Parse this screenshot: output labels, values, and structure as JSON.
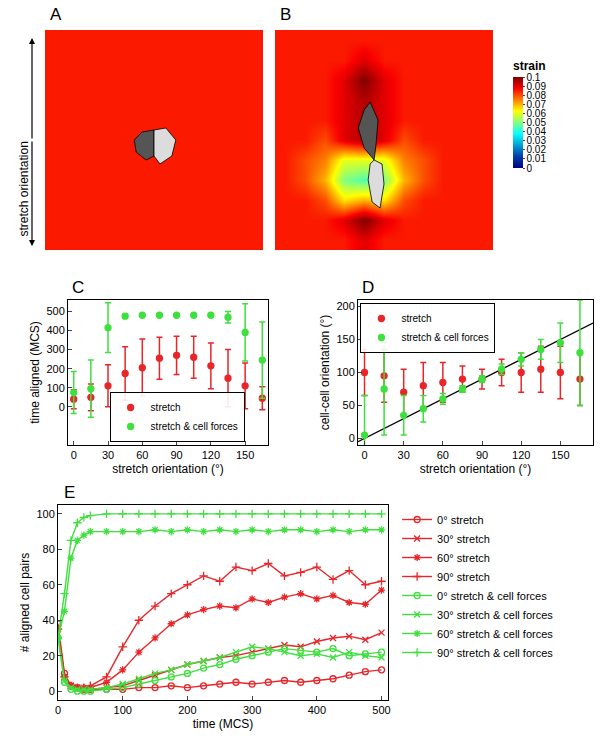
{
  "chart_data": [
    {
      "type": "heatmap",
      "label": "A",
      "side_label": "stretch orientation",
      "x": [
        0,
        1,
        2,
        3,
        4,
        5,
        6,
        7,
        8,
        9,
        10
      ],
      "y": [
        0,
        1,
        2,
        3,
        4,
        5,
        6,
        7,
        8,
        9,
        10
      ],
      "z": [
        [
          0.085,
          0.085,
          0.085,
          0.085,
          0.085,
          0.085,
          0.085,
          0.085,
          0.085,
          0.085,
          0.085
        ],
        [
          0.085,
          0.085,
          0.085,
          0.085,
          0.085,
          0.085,
          0.085,
          0.085,
          0.085,
          0.085,
          0.085
        ],
        [
          0.085,
          0.085,
          0.085,
          0.085,
          0.085,
          0.085,
          0.085,
          0.085,
          0.085,
          0.085,
          0.085
        ],
        [
          0.085,
          0.085,
          0.085,
          0.085,
          0.085,
          0.085,
          0.085,
          0.085,
          0.085,
          0.085,
          0.085
        ],
        [
          0.085,
          0.085,
          0.085,
          0.085,
          0.085,
          0.085,
          0.085,
          0.085,
          0.085,
          0.085,
          0.085
        ],
        [
          0.085,
          0.085,
          0.085,
          0.085,
          0.085,
          0.085,
          0.085,
          0.085,
          0.085,
          0.085,
          0.085
        ],
        [
          0.085,
          0.085,
          0.085,
          0.085,
          0.085,
          0.085,
          0.085,
          0.085,
          0.085,
          0.085,
          0.085
        ],
        [
          0.085,
          0.085,
          0.085,
          0.085,
          0.085,
          0.085,
          0.085,
          0.085,
          0.085,
          0.085,
          0.085
        ],
        [
          0.085,
          0.085,
          0.085,
          0.085,
          0.085,
          0.085,
          0.085,
          0.085,
          0.085,
          0.085,
          0.085
        ],
        [
          0.085,
          0.085,
          0.085,
          0.085,
          0.085,
          0.085,
          0.085,
          0.085,
          0.085,
          0.085,
          0.085
        ],
        [
          0.085,
          0.085,
          0.085,
          0.085,
          0.085,
          0.085,
          0.085,
          0.085,
          0.085,
          0.085,
          0.085
        ]
      ],
      "cells": [
        {
          "color": "#555555",
          "x": [
            5,
            4.4,
            4.0,
            4.1,
            4.6,
            5,
            5
          ],
          "y": [
            5.5,
            5.4,
            5.0,
            4.4,
            4.0,
            4.2,
            5.5
          ]
        },
        {
          "color": "#dcdcdc",
          "x": [
            5,
            5.6,
            6.1,
            5.9,
            5.3,
            5,
            5
          ],
          "y": [
            5.5,
            5.6,
            5.0,
            4.2,
            3.8,
            4.2,
            5.5
          ]
        }
      ],
      "xlim": [
        -0.5,
        10.5
      ],
      "ylim": [
        -0.5,
        10.5
      ],
      "tick_labels": false
    },
    {
      "type": "heatmap",
      "label": "B",
      "x": [
        0,
        1,
        2,
        3,
        4,
        5,
        6,
        7,
        8,
        9,
        10
      ],
      "y": [
        0,
        1,
        2,
        3,
        4,
        5,
        6,
        7,
        8,
        9,
        10
      ],
      "z": [
        [
          0.085,
          0.085,
          0.085,
          0.085,
          0.09,
          0.085,
          0.085,
          0.085,
          0.085,
          0.085,
          0.085
        ],
        [
          0.085,
          0.085,
          0.085,
          0.09,
          0.1,
          0.09,
          0.085,
          0.085,
          0.085,
          0.085,
          0.085
        ],
        [
          0.085,
          0.085,
          0.08,
          0.065,
          0.07,
          0.065,
          0.08,
          0.085,
          0.085,
          0.085,
          0.085
        ],
        [
          0.085,
          0.08,
          0.07,
          0.05,
          0.045,
          0.05,
          0.07,
          0.08,
          0.085,
          0.085,
          0.085
        ],
        [
          0.085,
          0.08,
          0.075,
          0.06,
          0.06,
          0.06,
          0.075,
          0.08,
          0.085,
          0.085,
          0.085
        ],
        [
          0.085,
          0.085,
          0.08,
          0.09,
          0.095,
          0.09,
          0.08,
          0.085,
          0.085,
          0.085,
          0.085
        ],
        [
          0.085,
          0.085,
          0.085,
          0.09,
          0.095,
          0.09,
          0.085,
          0.085,
          0.085,
          0.085,
          0.085
        ],
        [
          0.085,
          0.085,
          0.085,
          0.09,
          0.095,
          0.09,
          0.085,
          0.085,
          0.085,
          0.085,
          0.085
        ],
        [
          0.085,
          0.085,
          0.085,
          0.09,
          0.1,
          0.09,
          0.085,
          0.085,
          0.085,
          0.085,
          0.085
        ],
        [
          0.085,
          0.085,
          0.085,
          0.085,
          0.09,
          0.085,
          0.085,
          0.085,
          0.085,
          0.085,
          0.085
        ],
        [
          0.085,
          0.085,
          0.085,
          0.085,
          0.085,
          0.085,
          0.085,
          0.085,
          0.085,
          0.085,
          0.085
        ]
      ],
      "cells": [
        {
          "color": "#555555",
          "x": [
            4.3,
            4.0,
            3.7,
            4.0,
            4.5,
            4.6,
            4.7,
            4.3
          ],
          "y": [
            6.9,
            6.5,
            5.6,
            4.6,
            4.0,
            4.8,
            6.0,
            6.9
          ]
        },
        {
          "color": "#dcdcdc",
          "x": [
            4.5,
            4.9,
            5.0,
            4.8,
            4.4,
            4.2,
            4.3,
            4.5
          ],
          "y": [
            4.0,
            3.8,
            2.8,
            1.6,
            1.9,
            3.0,
            3.8,
            4.0
          ]
        }
      ],
      "xlim": [
        -0.5,
        10.5
      ],
      "ylim": [
        -0.5,
        10.5
      ],
      "tick_labels": false,
      "colorbar": {
        "title": "strain",
        "range": [
          0,
          0.1
        ],
        "ticks": [
          0,
          0.01,
          0.02,
          0.03,
          0.04,
          0.05,
          0.06,
          0.07,
          0.08,
          0.09,
          0.1
        ]
      }
    },
    {
      "type": "scatter",
      "label": "C",
      "xlabel": "stretch orientation (°)",
      "ylabel": "time aligned (MCS)",
      "x": [
        0,
        15,
        30,
        45,
        60,
        75,
        90,
        105,
        120,
        135,
        150,
        165
      ],
      "series": [
        {
          "name": "stretch",
          "color": "#e8262a",
          "marker": "dot",
          "values": [
            40,
            50,
            110,
            175,
            205,
            255,
            270,
            260,
            215,
            150,
            110,
            45
          ],
          "errors": [
            50,
            70,
            110,
            140,
            150,
            110,
            100,
            110,
            120,
            150,
            120,
            60
          ]
        },
        {
          "name": "stretch & cell forces",
          "color": "#3ee03e",
          "marker": "dot",
          "values": [
            75,
            95,
            415,
            475,
            480,
            480,
            480,
            480,
            480,
            470,
            390,
            245
          ],
          "errors": [
            110,
            150,
            130,
            10,
            5,
            5,
            5,
            5,
            5,
            30,
            150,
            200
          ]
        }
      ],
      "xlim": [
        -5,
        170
      ],
      "ylim": [
        -200,
        560
      ],
      "xticks": [
        0,
        30,
        60,
        90,
        120,
        150
      ],
      "yticks": [
        0,
        100,
        200,
        300,
        400,
        500
      ],
      "legend": "bottom"
    },
    {
      "type": "scatter",
      "label": "D",
      "xlabel": "stretch orientation (°)",
      "ylabel": "cell-cell orientation (°)",
      "x": [
        0,
        15,
        30,
        45,
        60,
        75,
        90,
        105,
        120,
        135,
        150,
        165
      ],
      "series": [
        {
          "name": "stretch",
          "color": "#e8262a",
          "marker": "dot",
          "values": [
            100,
            95,
            70,
            80,
            85,
            90,
            90,
            100,
            100,
            105,
            100,
            90
          ],
          "errors": [
            35,
            40,
            35,
            35,
            30,
            20,
            15,
            20,
            30,
            35,
            40,
            40
          ]
        },
        {
          "name": "stretch & cell forces",
          "color": "#3ee03e",
          "marker": "dot",
          "values": [
            5,
            75,
            35,
            45,
            60,
            75,
            90,
            105,
            120,
            135,
            145,
            130
          ],
          "errors": [
            60,
            70,
            30,
            20,
            8,
            5,
            5,
            8,
            10,
            15,
            30,
            80
          ]
        }
      ],
      "reference_line": {
        "color": "#000000",
        "x": [
          -5,
          175
        ],
        "y": [
          -5,
          175
        ]
      },
      "xlim": [
        -5,
        175
      ],
      "ylim": [
        -10,
        210
      ],
      "xticks": [
        0,
        30,
        60,
        90,
        120,
        150
      ],
      "yticks": [
        0,
        50,
        100,
        150,
        200
      ],
      "legend": "top left"
    },
    {
      "type": "line",
      "label": "E",
      "xlabel": "time (MCS)",
      "ylabel": "# aligned cell pairs",
      "x": [
        0,
        10,
        20,
        30,
        40,
        50,
        75,
        100,
        125,
        150,
        175,
        200,
        225,
        250,
        275,
        300,
        325,
        350,
        375,
        400,
        425,
        450,
        475,
        500
      ],
      "series": [
        {
          "name": "0° stretch",
          "color": "#e8262a",
          "marker": "circle",
          "values": [
            38,
            10,
            3,
            2,
            1,
            1,
            1,
            1,
            2,
            2,
            3,
            2,
            3,
            4,
            5,
            4,
            5,
            6,
            5,
            6,
            7,
            9,
            11,
            12
          ]
        },
        {
          "name": "30° stretch",
          "color": "#e8262a",
          "marker": "x",
          "values": [
            35,
            8,
            3,
            2,
            1,
            1,
            2,
            3,
            6,
            9,
            12,
            15,
            17,
            19,
            20,
            22,
            24,
            26,
            25,
            28,
            30,
            31,
            29,
            33
          ]
        },
        {
          "name": "60° stretch",
          "color": "#e8262a",
          "marker": "asterisk",
          "values": [
            35,
            8,
            3,
            2,
            2,
            2,
            5,
            12,
            22,
            30,
            38,
            43,
            46,
            48,
            47,
            52,
            50,
            53,
            55,
            52,
            54,
            50,
            49,
            57
          ]
        },
        {
          "name": "90° stretch",
          "color": "#e8262a",
          "marker": "cross",
          "values": [
            35,
            8,
            3,
            2,
            2,
            3,
            8,
            25,
            40,
            48,
            55,
            60,
            65,
            62,
            70,
            68,
            72,
            65,
            67,
            70,
            63,
            68,
            60,
            62
          ]
        },
        {
          "name": "0° stretch & cell forces",
          "color": "#3ee03e",
          "marker": "circle",
          "values": [
            30,
            5,
            1,
            0,
            0,
            0,
            1,
            2,
            4,
            6,
            8,
            10,
            13,
            15,
            18,
            20,
            22,
            24,
            23,
            22,
            24,
            20,
            21,
            22
          ]
        },
        {
          "name": "30° stretch & cell forces",
          "color": "#3ee03e",
          "marker": "x",
          "values": [
            32,
            6,
            2,
            1,
            1,
            1,
            2,
            4,
            7,
            10,
            12,
            15,
            17,
            19,
            22,
            25,
            24,
            22,
            20,
            21,
            19,
            22,
            20,
            19
          ]
        },
        {
          "name": "60° stretch & cell forces",
          "color": "#3ee03e",
          "marker": "asterisk",
          "values": [
            30,
            45,
            75,
            85,
            88,
            90,
            90,
            90,
            90,
            91,
            90,
            91,
            90,
            91,
            90,
            91,
            90,
            91,
            91,
            90,
            91,
            90,
            91,
            91
          ]
        },
        {
          "name": "90° stretch & cell forces",
          "color": "#3ee03e",
          "marker": "cross",
          "values": [
            30,
            55,
            85,
            95,
            98,
            99,
            100,
            100,
            100,
            100,
            100,
            100,
            100,
            100,
            100,
            100,
            100,
            100,
            100,
            100,
            100,
            100,
            100,
            100
          ]
        }
      ],
      "xlim": [
        0,
        510
      ],
      "ylim": [
        -5,
        105
      ],
      "xticks": [
        0,
        100,
        200,
        300,
        400,
        500
      ],
      "yticks": [
        0,
        20,
        40,
        60,
        80,
        100
      ],
      "legend": "right"
    }
  ]
}
